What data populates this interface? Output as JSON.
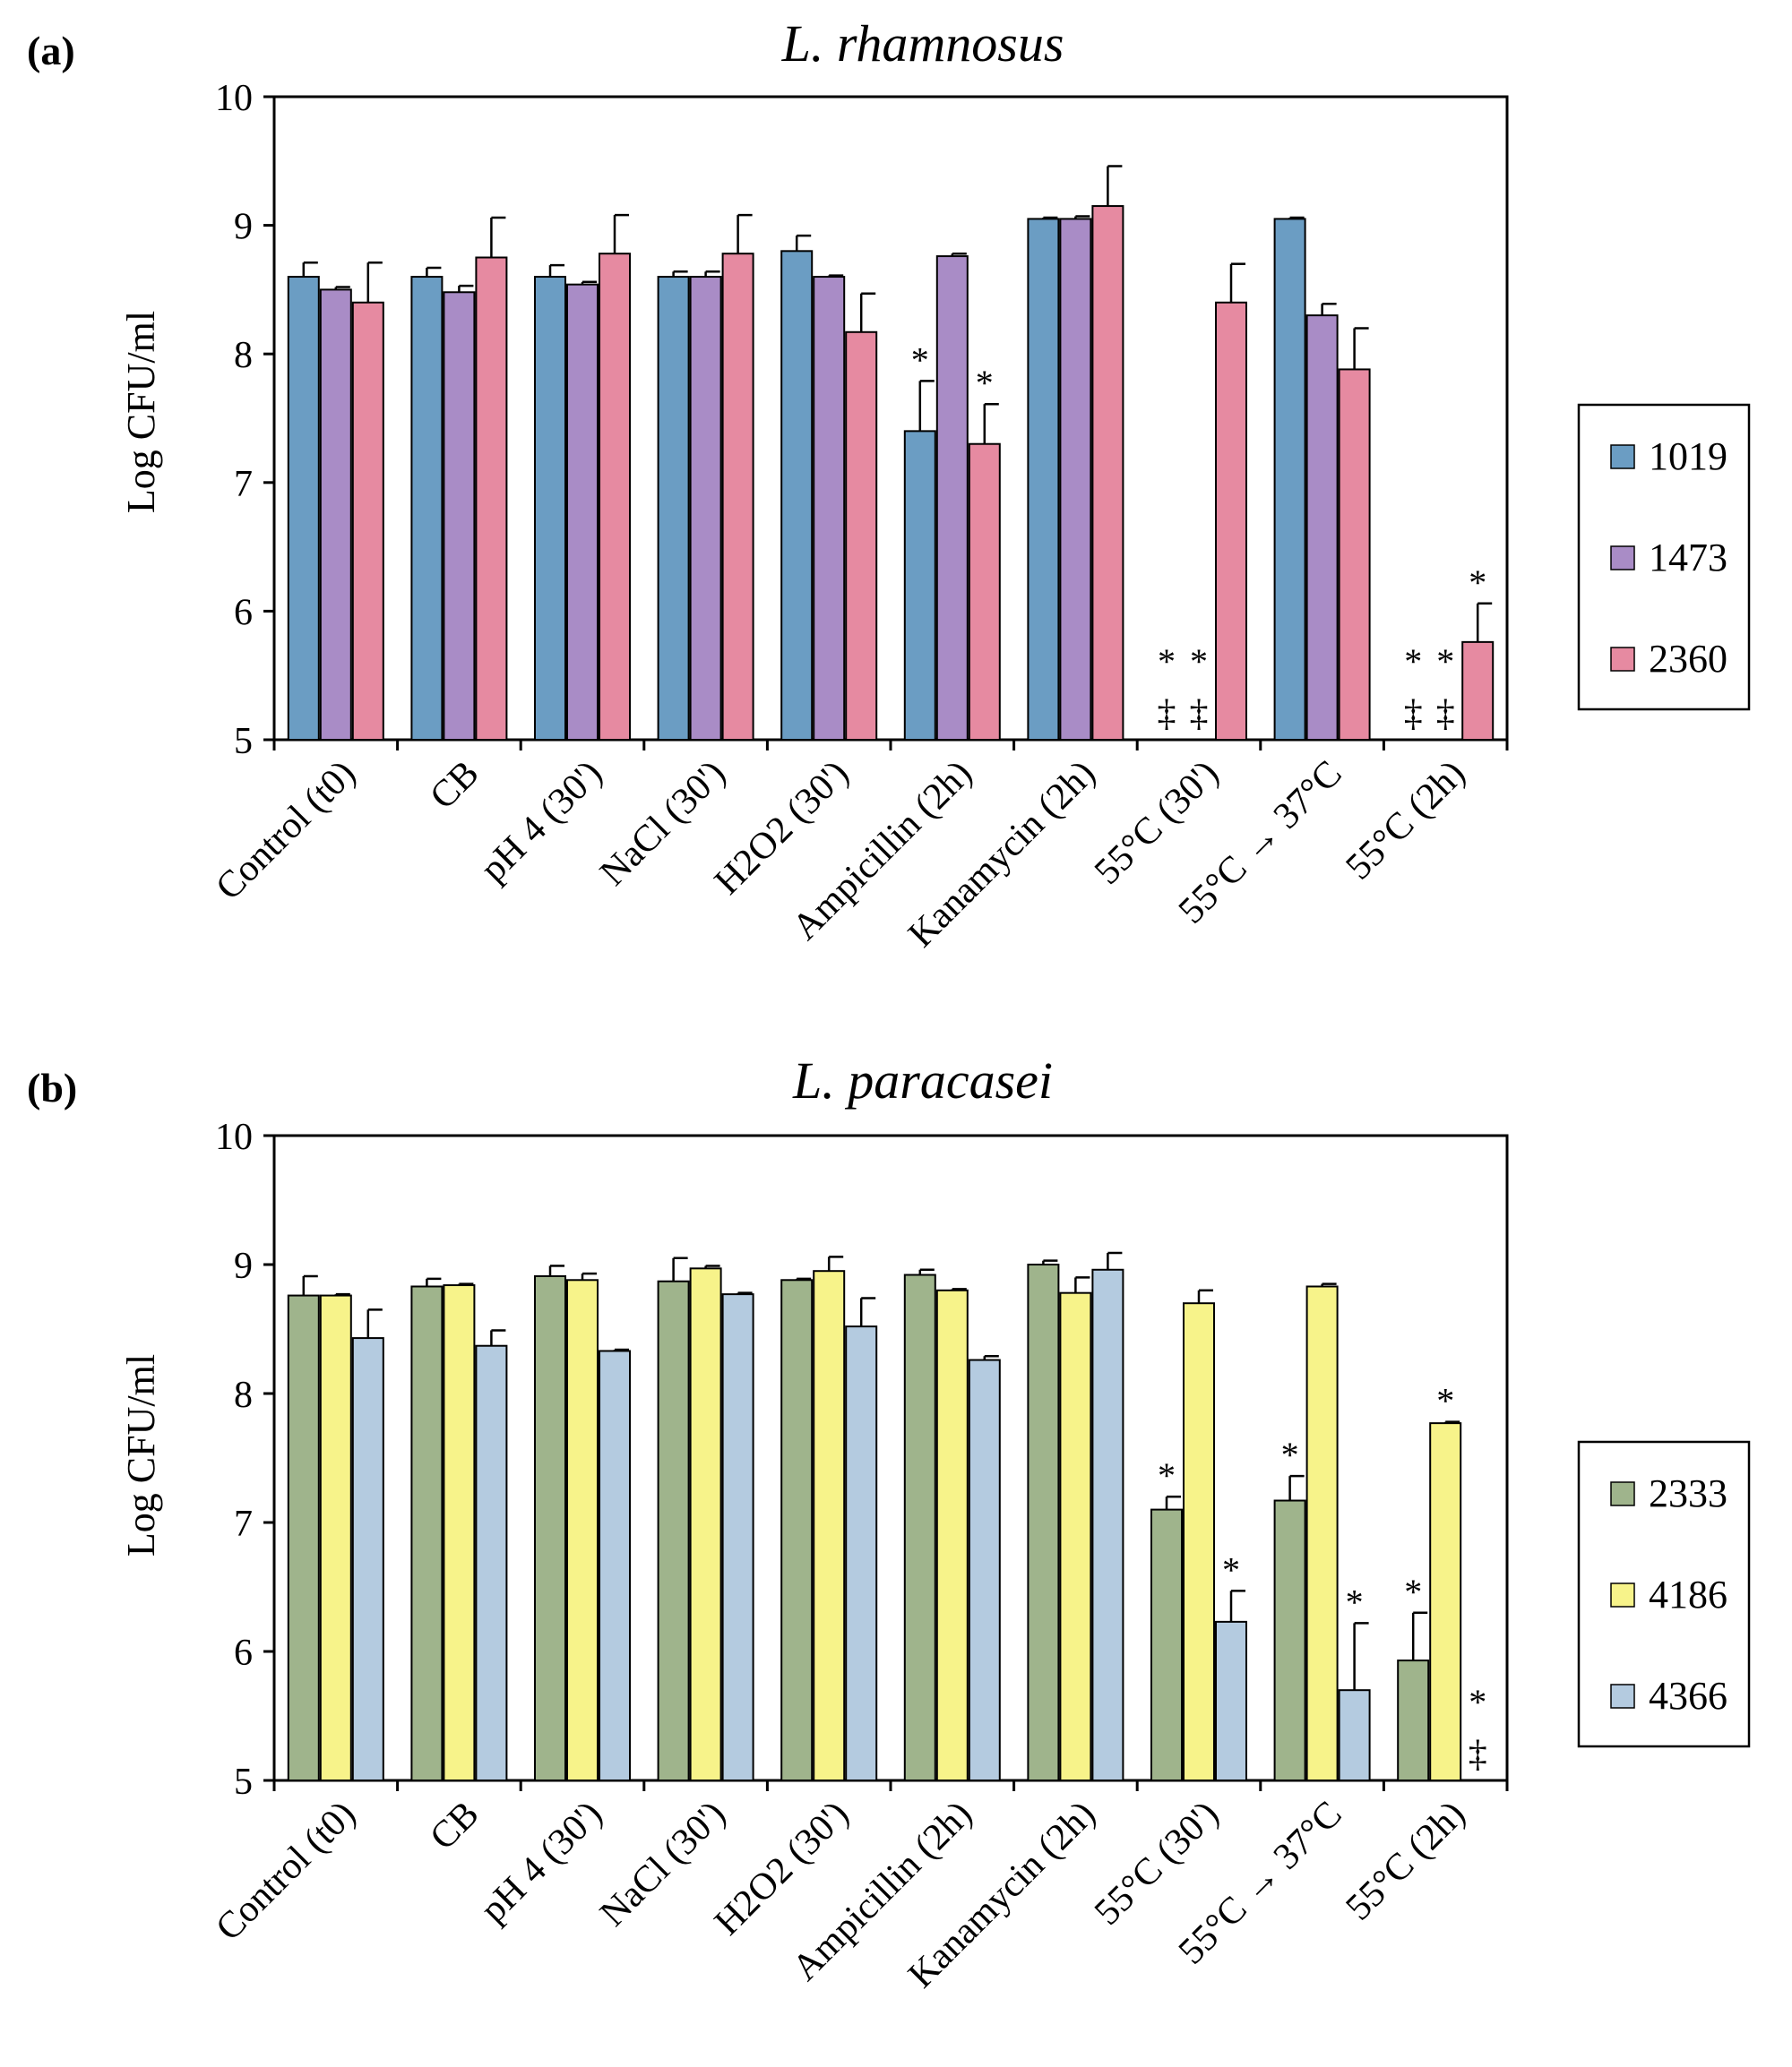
{
  "figure": {
    "y_axis_label": "Log CFU/ml",
    "categories": [
      "Control (t0)",
      "CB",
      "pH 4 (30')",
      "NaCl (30')",
      "H2O2  (30')",
      "Ampicillin (2h)",
      "Kanamycin (2h)",
      "55°C (30')",
      "55°C → 37°C",
      "55°C (2h)"
    ]
  },
  "chart_data": [
    {
      "type": "bar",
      "panel_label": "(a)",
      "title": "L. rhamnosus",
      "ylabel": "Log CFU/ml",
      "xlabel": "",
      "ylim": [
        5,
        10
      ],
      "yticks": [
        5,
        6,
        7,
        8,
        9,
        10
      ],
      "categories": [
        "Control (t0)",
        "CB",
        "pH 4 (30')",
        "NaCl (30')",
        "H2O2  (30')",
        "Ampicillin (2h)",
        "Kanamycin (2h)",
        "55°C (30')",
        "55°C → 37°C",
        "55°C (2h)"
      ],
      "series": [
        {
          "name": "1019",
          "color": "#6b9dc3",
          "values": [
            8.6,
            8.6,
            8.6,
            8.6,
            8.8,
            7.4,
            9.05,
            null,
            9.05,
            null
          ],
          "errors": [
            0.11,
            0.07,
            0.09,
            0.04,
            0.12,
            0.39,
            0.01,
            null,
            0.01,
            null
          ],
          "marks": [
            "",
            "",
            "",
            "",
            "",
            "*",
            "",
            "*\n‡",
            "",
            "*\n‡"
          ]
        },
        {
          "name": "1473",
          "color": "#a98cc6",
          "values": [
            8.5,
            8.48,
            8.54,
            8.6,
            8.6,
            8.76,
            9.05,
            null,
            8.3,
            null
          ],
          "errors": [
            0.02,
            0.05,
            0.02,
            0.04,
            0.01,
            0.02,
            0.02,
            null,
            0.09,
            null
          ],
          "marks": [
            "",
            "",
            "",
            "",
            "",
            "",
            "",
            "*\n‡",
            "",
            "*\n‡"
          ]
        },
        {
          "name": "2360",
          "color": "#e68aa1",
          "values": [
            8.4,
            8.75,
            8.78,
            8.78,
            8.17,
            7.3,
            9.15,
            8.4,
            7.88,
            5.76
          ],
          "errors": [
            0.31,
            0.31,
            0.3,
            0.3,
            0.3,
            0.31,
            0.31,
            0.3,
            0.32,
            0.3
          ],
          "marks": [
            "",
            "",
            "",
            "",
            "",
            "*",
            "",
            "",
            "",
            "*"
          ]
        }
      ],
      "legend": {
        "position": "right",
        "entries": [
          "1019",
          "1473",
          "2360"
        ]
      }
    },
    {
      "type": "bar",
      "panel_label": "(b)",
      "title": "L. paracasei",
      "ylabel": "Log CFU/ml",
      "xlabel": "",
      "ylim": [
        5,
        10
      ],
      "yticks": [
        5,
        6,
        7,
        8,
        9,
        10
      ],
      "categories": [
        "Control (t0)",
        "CB",
        "pH 4 (30')",
        "NaCl (30')",
        "H2O2  (30')",
        "Ampicillin (2h)",
        "Kanamycin (2h)",
        "55°C (30')",
        "55°C → 37°C",
        "55°C (2h)"
      ],
      "series": [
        {
          "name": "2333",
          "color": "#9fb48c",
          "values": [
            8.76,
            8.83,
            8.91,
            8.87,
            8.88,
            8.92,
            9.0,
            7.1,
            7.17,
            5.93
          ],
          "errors": [
            0.15,
            0.06,
            0.08,
            0.18,
            0.01,
            0.04,
            0.03,
            0.1,
            0.19,
            0.37
          ],
          "marks": [
            "",
            "",
            "",
            "",
            "",
            "",
            "",
            "*",
            "*",
            "*"
          ]
        },
        {
          "name": "4186",
          "color": "#f7f38a",
          "values": [
            8.76,
            8.84,
            8.88,
            8.97,
            8.95,
            8.8,
            8.78,
            8.7,
            8.83,
            7.77
          ],
          "errors": [
            0.01,
            0.01,
            0.05,
            0.02,
            0.11,
            0.01,
            0.12,
            0.1,
            0.02,
            0.01
          ],
          "marks": [
            "",
            "",
            "",
            "",
            "",
            "",
            "",
            "",
            "",
            "*"
          ]
        },
        {
          "name": "4366",
          "color": "#b4cbe0",
          "values": [
            8.43,
            8.37,
            8.33,
            8.77,
            8.52,
            8.26,
            8.96,
            6.23,
            5.7,
            null
          ],
          "errors": [
            0.22,
            0.12,
            0.01,
            0.01,
            0.22,
            0.03,
            0.13,
            0.24,
            0.52,
            null
          ],
          "marks": [
            "",
            "",
            "",
            "",
            "",
            "",
            "",
            "*",
            "*",
            "*\n‡"
          ]
        }
      ],
      "legend": {
        "position": "right",
        "entries": [
          "2333",
          "4186",
          "4366"
        ]
      }
    }
  ]
}
